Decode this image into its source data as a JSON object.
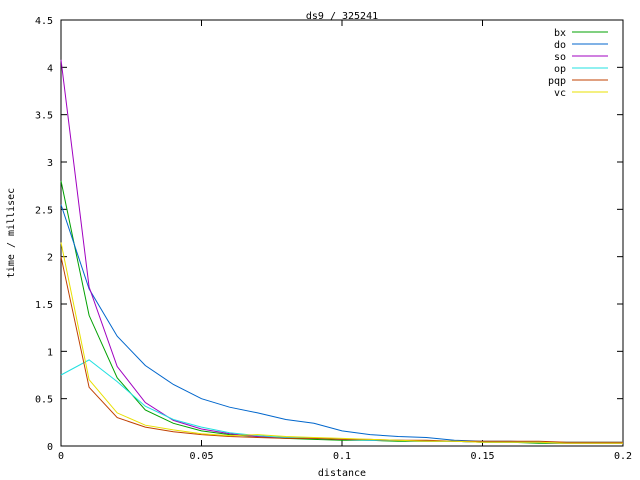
{
  "chart_data": {
    "type": "line",
    "title": "ds9 / 325241",
    "xlabel": "distance",
    "ylabel": "time / millisec",
    "xlim": [
      0,
      0.2
    ],
    "ylim": [
      0,
      4.5
    ],
    "xticks": [
      0,
      0.05,
      0.1,
      0.15,
      0.2
    ],
    "xtick_labels": [
      "0",
      "0.05",
      "0.1",
      "0.15",
      "0.2"
    ],
    "yticks": [
      0,
      0.5,
      1,
      1.5,
      2,
      2.5,
      3,
      3.5,
      4,
      4.5
    ],
    "ytick_labels": [
      "0",
      "0.5",
      "1",
      "1.5",
      "2",
      "2.5",
      "3",
      "3.5",
      "4",
      "4.5"
    ],
    "grid": false,
    "legend_position": "top-right",
    "series": [
      {
        "name": "bx",
        "color": "#00a000",
        "x": [
          0,
          0.01,
          0.02,
          0.03,
          0.04,
          0.05,
          0.06,
          0.07,
          0.08,
          0.09,
          0.1,
          0.11,
          0.12,
          0.13,
          0.14,
          0.15,
          0.16,
          0.17,
          0.18,
          0.19,
          0.2
        ],
        "y": [
          2.8,
          1.38,
          0.72,
          0.38,
          0.24,
          0.16,
          0.12,
          0.1,
          0.08,
          0.07,
          0.06,
          0.06,
          0.05,
          0.05,
          0.05,
          0.04,
          0.04,
          0.03,
          0.03,
          0.03,
          0.03
        ]
      },
      {
        "name": "do",
        "color": "#0066cc",
        "x": [
          0,
          0.01,
          0.02,
          0.03,
          0.04,
          0.05,
          0.06,
          0.07,
          0.08,
          0.09,
          0.1,
          0.11,
          0.12,
          0.13,
          0.14,
          0.15,
          0.16,
          0.17,
          0.18,
          0.19,
          0.2
        ],
        "y": [
          2.55,
          1.66,
          1.16,
          0.85,
          0.65,
          0.5,
          0.41,
          0.35,
          0.28,
          0.24,
          0.16,
          0.12,
          0.1,
          0.09,
          0.06,
          0.05,
          0.05,
          0.04,
          0.04,
          0.04,
          0.04
        ]
      },
      {
        "name": "so",
        "color": "#a000c0",
        "x": [
          0,
          0.01,
          0.02,
          0.03,
          0.04,
          0.05,
          0.06,
          0.07,
          0.08,
          0.09,
          0.1,
          0.11,
          0.12,
          0.13,
          0.14,
          0.15,
          0.16,
          0.17,
          0.18,
          0.19,
          0.2
        ],
        "y": [
          4.08,
          1.68,
          0.84,
          0.46,
          0.27,
          0.18,
          0.13,
          0.1,
          0.09,
          0.08,
          0.07,
          0.06,
          0.06,
          0.05,
          0.05,
          0.04,
          0.04,
          0.04,
          0.03,
          0.03,
          0.03
        ]
      },
      {
        "name": "op",
        "color": "#20e0e0",
        "x": [
          0,
          0.01,
          0.02,
          0.03,
          0.04,
          0.05,
          0.06,
          0.07,
          0.08,
          0.09,
          0.1,
          0.11,
          0.12,
          0.13,
          0.14,
          0.15,
          0.16,
          0.17,
          0.18,
          0.19,
          0.2
        ],
        "y": [
          0.75,
          0.91,
          0.68,
          0.42,
          0.28,
          0.2,
          0.14,
          0.11,
          0.09,
          0.08,
          0.07,
          0.06,
          0.06,
          0.05,
          0.05,
          0.04,
          0.04,
          0.04,
          0.04,
          0.04,
          0.04
        ]
      },
      {
        "name": "pqp",
        "color": "#c04000",
        "x": [
          0,
          0.01,
          0.02,
          0.03,
          0.04,
          0.05,
          0.06,
          0.07,
          0.08,
          0.09,
          0.1,
          0.11,
          0.12,
          0.13,
          0.14,
          0.15,
          0.16,
          0.17,
          0.18,
          0.19,
          0.2
        ],
        "y": [
          2.0,
          0.62,
          0.3,
          0.2,
          0.15,
          0.12,
          0.1,
          0.09,
          0.08,
          0.08,
          0.07,
          0.07,
          0.06,
          0.06,
          0.05,
          0.05,
          0.05,
          0.05,
          0.04,
          0.04,
          0.04
        ]
      },
      {
        "name": "vc",
        "color": "#e8e000",
        "x": [
          0,
          0.01,
          0.02,
          0.03,
          0.04,
          0.05,
          0.06,
          0.07,
          0.08,
          0.09,
          0.1,
          0.11,
          0.12,
          0.13,
          0.14,
          0.15,
          0.16,
          0.17,
          0.18,
          0.19,
          0.2
        ],
        "y": [
          2.15,
          0.7,
          0.35,
          0.22,
          0.17,
          0.13,
          0.11,
          0.12,
          0.1,
          0.09,
          0.08,
          0.07,
          0.06,
          0.05,
          0.05,
          0.04,
          0.04,
          0.04,
          0.03,
          0.03,
          0.03
        ]
      }
    ]
  }
}
